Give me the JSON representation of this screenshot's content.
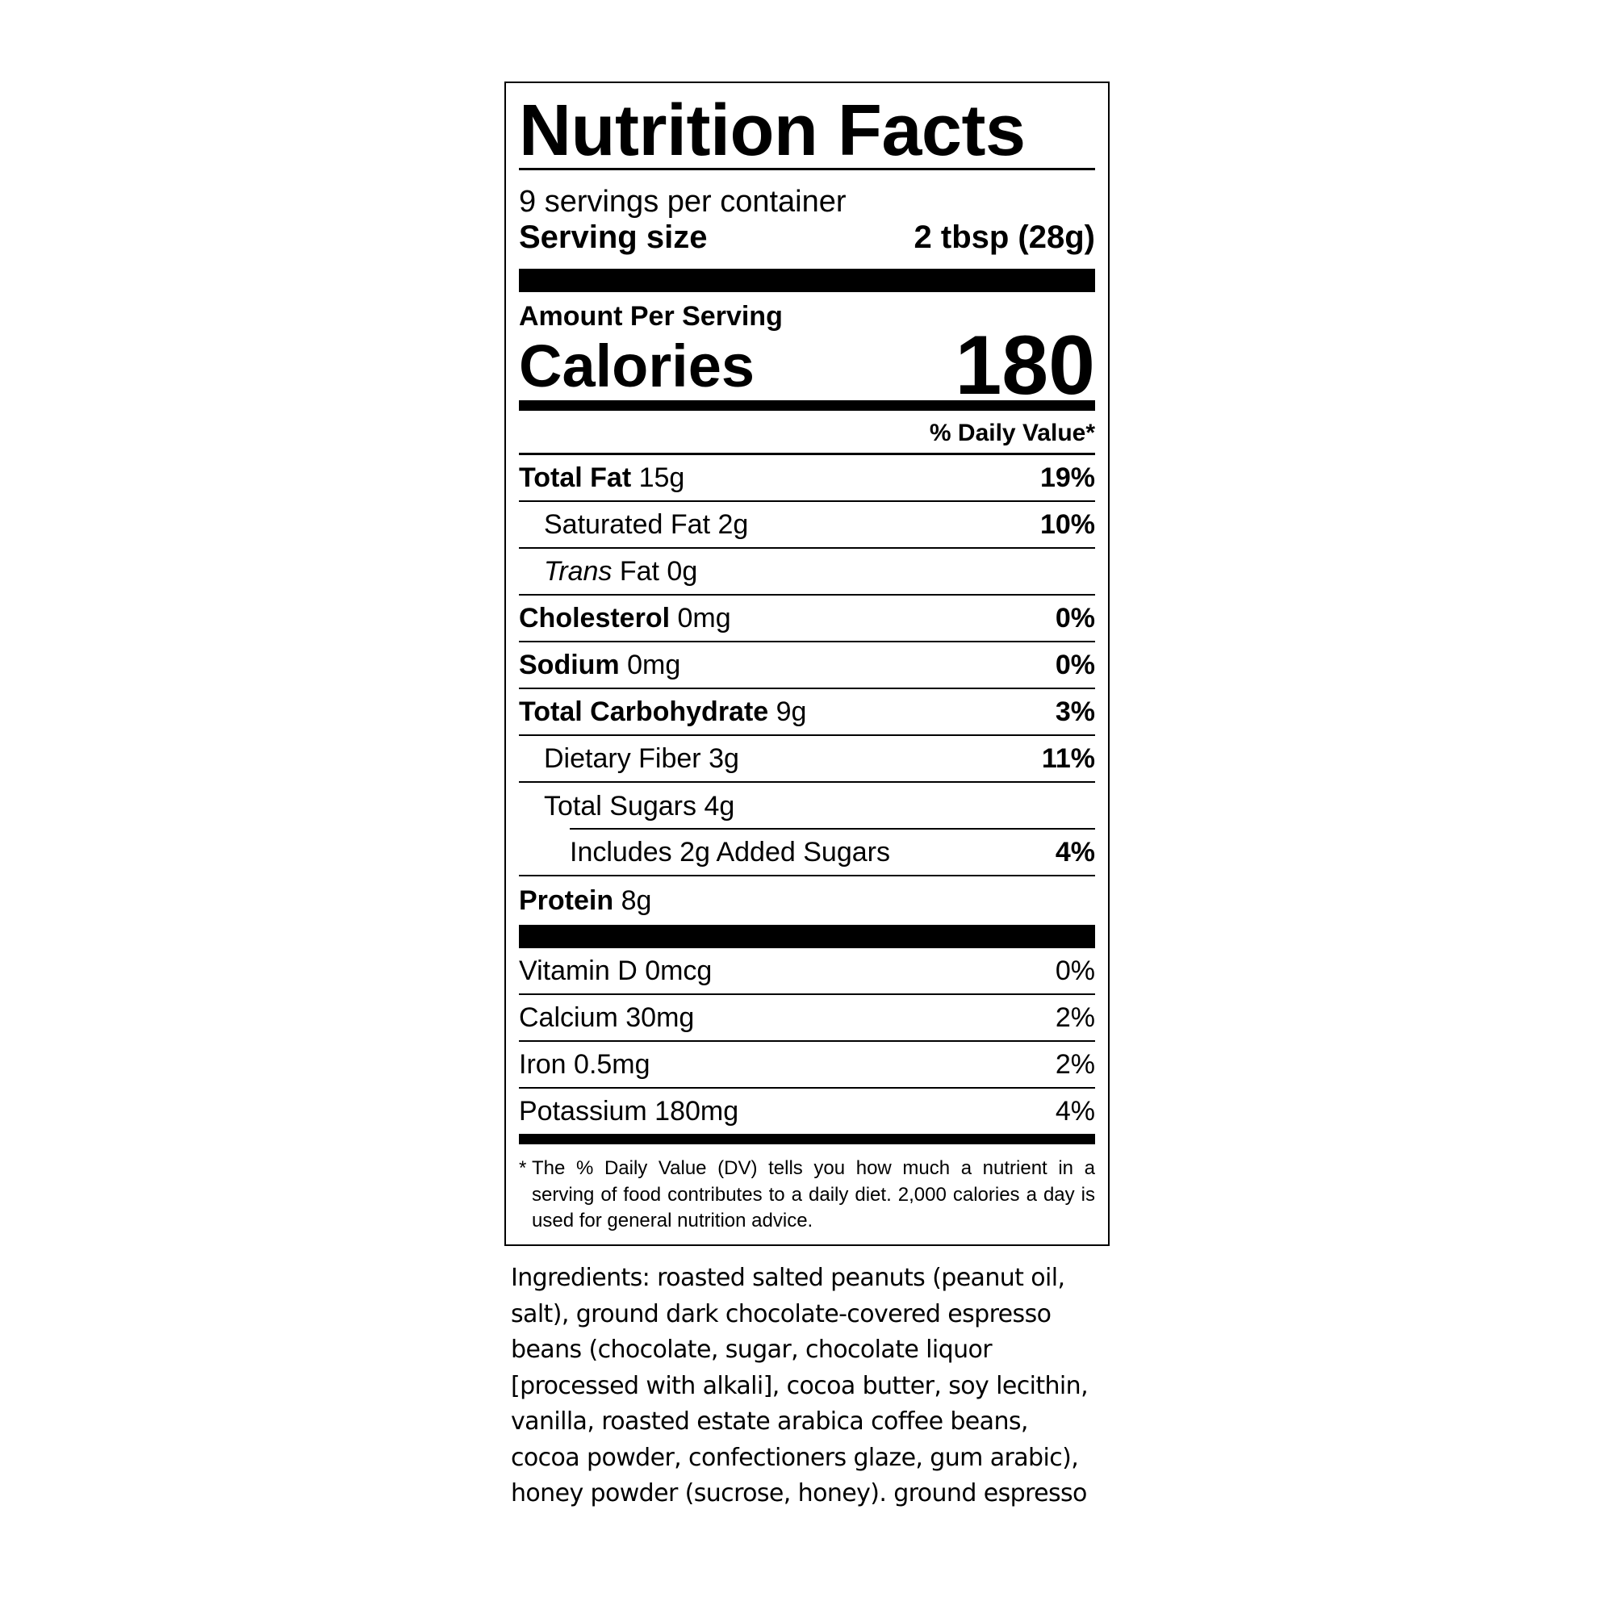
{
  "label": {
    "title": "Nutrition Facts",
    "servings_per_container": "9 servings per container",
    "serving_size_label": "Serving size",
    "serving_size_value": "2 tbsp (28g)",
    "amount_per_serving": "Amount Per Serving",
    "calories_label": "Calories",
    "calories_value": "180",
    "daily_value_header": "% Daily Value*",
    "nutrients": [
      {
        "name": "Total Fat",
        "amount": "15g",
        "dv": "19%"
      },
      {
        "name": "Saturated Fat",
        "amount": "2g",
        "dv": "10%"
      },
      {
        "name": "Trans",
        "name_suffix": "Fat",
        "amount": "0g",
        "dv": ""
      },
      {
        "name": "Cholesterol",
        "amount": "0mg",
        "dv": "0%"
      },
      {
        "name": "Sodium",
        "amount": "0mg",
        "dv": "0%"
      },
      {
        "name": "Total Carbohydrate",
        "amount": "9g",
        "dv": "3%"
      },
      {
        "name": "Dietary Fiber",
        "amount": "3g",
        "dv": "11%"
      },
      {
        "name": "Total Sugars",
        "amount": "4g",
        "dv": ""
      },
      {
        "name": "Includes 2g Added Sugars",
        "amount": "",
        "dv": "4%"
      },
      {
        "name": "Protein",
        "amount": "8g",
        "dv": ""
      }
    ],
    "vitamins": [
      {
        "text": "Vitamin D 0mcg",
        "dv": "0%"
      },
      {
        "text": "Calcium 30mg",
        "dv": "2%"
      },
      {
        "text": "Iron 0.5mg",
        "dv": "2%"
      },
      {
        "text": "Potassium 180mg",
        "dv": "4%"
      }
    ],
    "footnote_star": "*",
    "footnote": "The % Daily Value (DV) tells you how much a nutrient in a serving of food contributes to a daily diet. 2,000 calories a day is used for general nutrition advice."
  },
  "ingredients_lines": [
    "Ingredients: roasted salted peanuts (peanut oil,",
    "salt), ground dark chocolate-covered espresso",
    "beans (chocolate, sugar, chocolate liquor",
    "[processed with alkali], cocoa butter, soy lecithin,",
    "vanilla, roasted estate arabica coffee beans,",
    "cocoa powder, confectioners glaze, gum arabic),",
    "honey powder (sucrose, honey). ground espresso"
  ]
}
